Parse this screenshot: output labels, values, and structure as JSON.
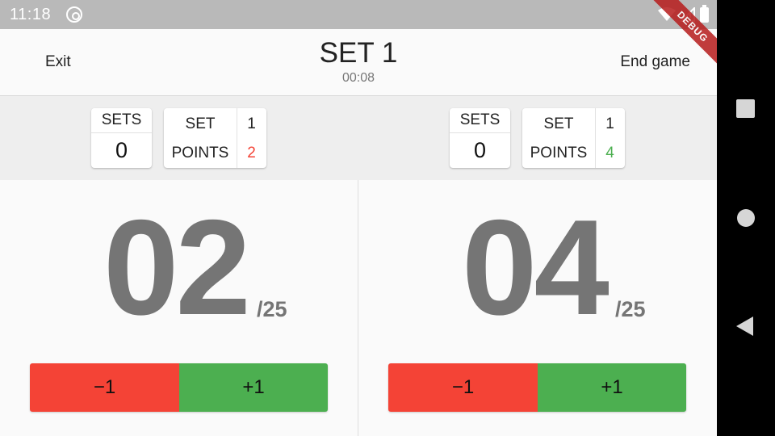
{
  "status_bar": {
    "time": "11:18",
    "icons": [
      "app-notification-icon",
      "wifi-icon",
      "signal-icon",
      "battery-icon"
    ]
  },
  "debug_banner": "DEBUG",
  "header": {
    "exit_label": "Exit",
    "title": "SET 1",
    "timer": "00:08",
    "end_game_label": "End game"
  },
  "teams": [
    {
      "sets_label": "SETS",
      "sets_value": "0",
      "set_label": "SET",
      "set_value": "1",
      "points_label": "POINTS",
      "points_value": "2",
      "points_color": "#f44336",
      "score": "02",
      "score_max": "/25",
      "minus_label": "−1",
      "plus_label": "+1"
    },
    {
      "sets_label": "SETS",
      "sets_value": "0",
      "set_label": "SET",
      "set_value": "1",
      "points_label": "POINTS",
      "points_value": "4",
      "points_color": "#4caf50",
      "score": "04",
      "score_max": "/25",
      "minus_label": "−1",
      "plus_label": "+1"
    }
  ],
  "colors": {
    "minus_button": "#f44336",
    "plus_button": "#4caf50",
    "score_text": "#757575"
  },
  "nav_bar": [
    "recent-apps-icon",
    "home-icon",
    "back-icon"
  ]
}
